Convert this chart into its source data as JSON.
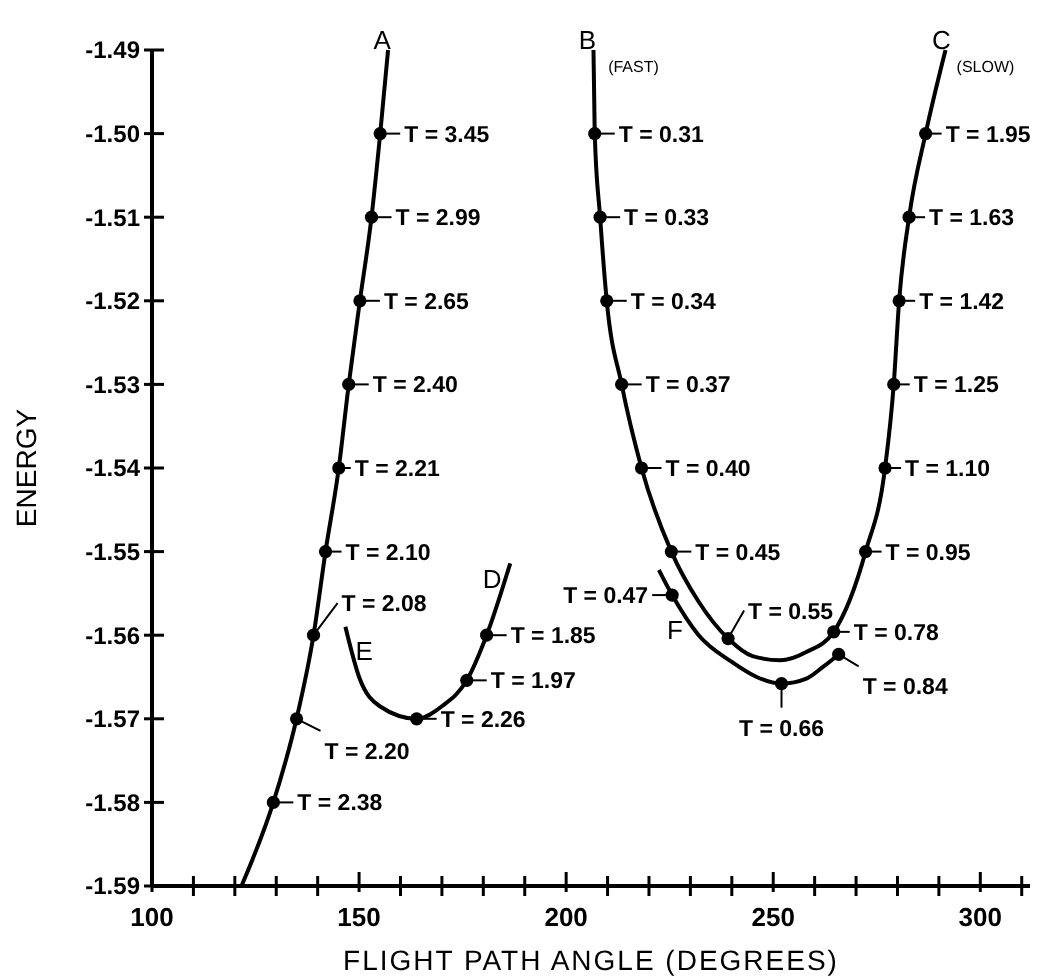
{
  "chart_data": {
    "type": "line",
    "xlabel": "FLIGHT PATH ANGLE (DEGREES)",
    "ylabel": "ENERGY",
    "xlim": [
      100,
      312
    ],
    "ylim": [
      -1.59,
      -1.49
    ],
    "xticks": [
      100,
      {
        "value": 110,
        "label": null
      },
      {
        "value": 120,
        "label": null
      },
      {
        "value": 130,
        "label": null
      },
      {
        "value": 140,
        "label": null
      },
      150,
      {
        "value": 160,
        "label": null
      },
      {
        "value": 170,
        "label": null
      },
      {
        "value": 180,
        "label": null
      },
      {
        "value": 190,
        "label": null
      },
      200,
      {
        "value": 210,
        "label": null
      },
      {
        "value": 220,
        "label": null
      },
      {
        "value": 230,
        "label": null
      },
      {
        "value": 240,
        "label": null
      },
      250,
      {
        "value": 260,
        "label": null
      },
      {
        "value": 270,
        "label": null
      },
      {
        "value": 280,
        "label": null
      },
      {
        "value": 290,
        "label": null
      },
      300,
      {
        "value": 310,
        "label": null
      }
    ],
    "yticks": [
      {
        "value": -1.49,
        "label": "-1.49"
      },
      {
        "value": -1.5,
        "label": "-1.50"
      },
      {
        "value": -1.51,
        "label": "-1.51"
      },
      {
        "value": -1.52,
        "label": "-1.52"
      },
      {
        "value": -1.53,
        "label": "-1.53"
      },
      {
        "value": -1.54,
        "label": "-1.54"
      },
      {
        "value": -1.55,
        "label": "-1.55"
      },
      {
        "value": -1.56,
        "label": "-1.56"
      },
      {
        "value": -1.57,
        "label": "-1.57"
      },
      {
        "value": -1.58,
        "label": "-1.58"
      },
      {
        "value": -1.59,
        "label": "-1.59"
      }
    ],
    "grid": false,
    "marker": "none",
    "line_style": "solid",
    "series": [
      {
        "color": "#000000",
        "x": [
          121.6,
          129.3,
          134.9,
          139,
          141.9,
          145.1,
          147.5,
          150.2,
          153,
          155.1,
          157
        ],
        "values": [
          -1.59,
          -1.58,
          -1.57,
          -1.56,
          -1.55,
          -1.54,
          -1.53,
          -1.52,
          -1.51,
          -1.5,
          -1.49
        ]
      },
      {
        "color": "#000000",
        "x": [
          146.7,
          150,
          155,
          163.9,
          170,
          176,
          180.8,
          186.5
        ],
        "values": [
          -1.559,
          -1.565,
          -1.5685,
          -1.57,
          -1.5685,
          -1.5654,
          -1.56,
          -1.5514
        ]
      },
      {
        "color": "#000000",
        "x": [
          206.6,
          206.9,
          208.2,
          209.8,
          213.4,
          218.2,
          225.4,
          232,
          239.1,
          245,
          251.7,
          258,
          264.6,
          272.3,
          277,
          279.1,
          280.4,
          282.8,
          286.8,
          291.6
        ],
        "values": [
          -1.49,
          -1.5,
          -1.51,
          -1.52,
          -1.53,
          -1.54,
          -1.55,
          -1.556,
          -1.5604,
          -1.5625,
          -1.563,
          -1.562,
          -1.5596,
          -1.55,
          -1.54,
          -1.53,
          -1.52,
          -1.51,
          -1.5,
          -1.49
        ]
      },
      {
        "color": "#000000",
        "x": [
          222.4,
          225.6,
          232,
          240,
          246,
          252,
          258,
          262,
          265.8
        ],
        "values": [
          -1.5522,
          -1.5552,
          -1.56,
          -1.5632,
          -1.565,
          -1.5658,
          -1.5652,
          -1.5638,
          -1.5623
        ]
      },
      {
        "type": "scatter",
        "color": "#000000",
        "marker": "circle",
        "x": [
          155.1,
          153,
          150.2,
          147.5,
          145.1,
          141.9,
          139,
          134.9,
          129.3,
          163.9,
          176,
          180.8,
          206.9,
          208.2,
          209.8,
          213.4,
          218.2,
          225.4,
          239.1,
          264.6,
          272.3,
          277,
          279.1,
          280.4,
          282.8,
          286.8,
          225.6,
          252,
          265.8
        ],
        "values": [
          -1.5,
          -1.51,
          -1.52,
          -1.53,
          -1.54,
          -1.55,
          -1.56,
          -1.57,
          -1.58,
          -1.57,
          -1.5654,
          -1.56,
          -1.5,
          -1.51,
          -1.52,
          -1.53,
          -1.54,
          -1.55,
          -1.5604,
          -1.5596,
          -1.55,
          -1.54,
          -1.53,
          -1.52,
          -1.51,
          -1.5,
          -1.5552,
          -1.5658,
          -1.5623
        ]
      }
    ],
    "annotations": [
      {
        "text": "T = 3.45",
        "x": 155.1,
        "y": -1.5
      },
      {
        "text": "T = 2.99",
        "x": 153,
        "y": -1.51
      },
      {
        "text": "T = 2.65",
        "x": 150.2,
        "y": -1.52
      },
      {
        "text": "T = 2.40",
        "x": 147.5,
        "y": -1.53
      },
      {
        "text": "T = 2.21",
        "x": 145.1,
        "y": -1.54
      },
      {
        "text": "T = 2.10",
        "x": 141.9,
        "y": -1.55
      },
      {
        "text": "T = 2.08",
        "x": 139,
        "y": -1.56
      },
      {
        "text": "T = 2.20",
        "x": 134.9,
        "y": -1.57
      },
      {
        "text": "T = 2.38",
        "x": 129.3,
        "y": -1.58
      },
      {
        "text": "T = 2.26",
        "x": 163.9,
        "y": -1.57
      },
      {
        "text": "T = 1.97",
        "x": 176,
        "y": -1.5654
      },
      {
        "text": "T = 1.85",
        "x": 180.8,
        "y": -1.56
      },
      {
        "text": "T = 0.31",
        "x": 206.9,
        "y": -1.5
      },
      {
        "text": "T = 0.33",
        "x": 208.2,
        "y": -1.51
      },
      {
        "text": "T = 0.34",
        "x": 209.8,
        "y": -1.52
      },
      {
        "text": "T = 0.37",
        "x": 213.4,
        "y": -1.53
      },
      {
        "text": "T = 0.40",
        "x": 218.2,
        "y": -1.54
      },
      {
        "text": "T = 0.45",
        "x": 225.4,
        "y": -1.55
      },
      {
        "text": "T = 0.55",
        "x": 239.1,
        "y": -1.5604
      },
      {
        "text": "T = 0.78",
        "x": 264.6,
        "y": -1.5596
      },
      {
        "text": "T = 0.95",
        "x": 272.3,
        "y": -1.55
      },
      {
        "text": "T = 1.10",
        "x": 277,
        "y": -1.54
      },
      {
        "text": "T = 1.25",
        "x": 279.1,
        "y": -1.53
      },
      {
        "text": "T = 1.42",
        "x": 280.4,
        "y": -1.52
      },
      {
        "text": "T = 1.63",
        "x": 282.8,
        "y": -1.51
      },
      {
        "text": "T = 1.95",
        "x": 286.8,
        "y": -1.5
      },
      {
        "text": "T = 0.47",
        "x": 225.6,
        "y": -1.5552
      },
      {
        "text": "T = 0.66",
        "x": 252,
        "y": -1.5658
      },
      {
        "text": "T = 0.84",
        "x": 265.8,
        "y": -1.5623
      },
      {
        "text": "A",
        "x": 157,
        "y": -1.49
      },
      {
        "text": "B",
        "x": 206.6,
        "y": -1.49
      },
      {
        "text": "(FAST)",
        "x": 206.6,
        "y": -1.49
      },
      {
        "text": "C",
        "x": 291.6,
        "y": -1.49
      },
      {
        "text": "(SLOW)",
        "x": 291.6,
        "y": -1.49
      },
      {
        "text": "D",
        "x": 186.5,
        "y": -1.5514
      },
      {
        "text": "E",
        "x": 146.7,
        "y": -1.559
      },
      {
        "text": "F",
        "x": 222.4,
        "y": -1.5522
      }
    ]
  }
}
